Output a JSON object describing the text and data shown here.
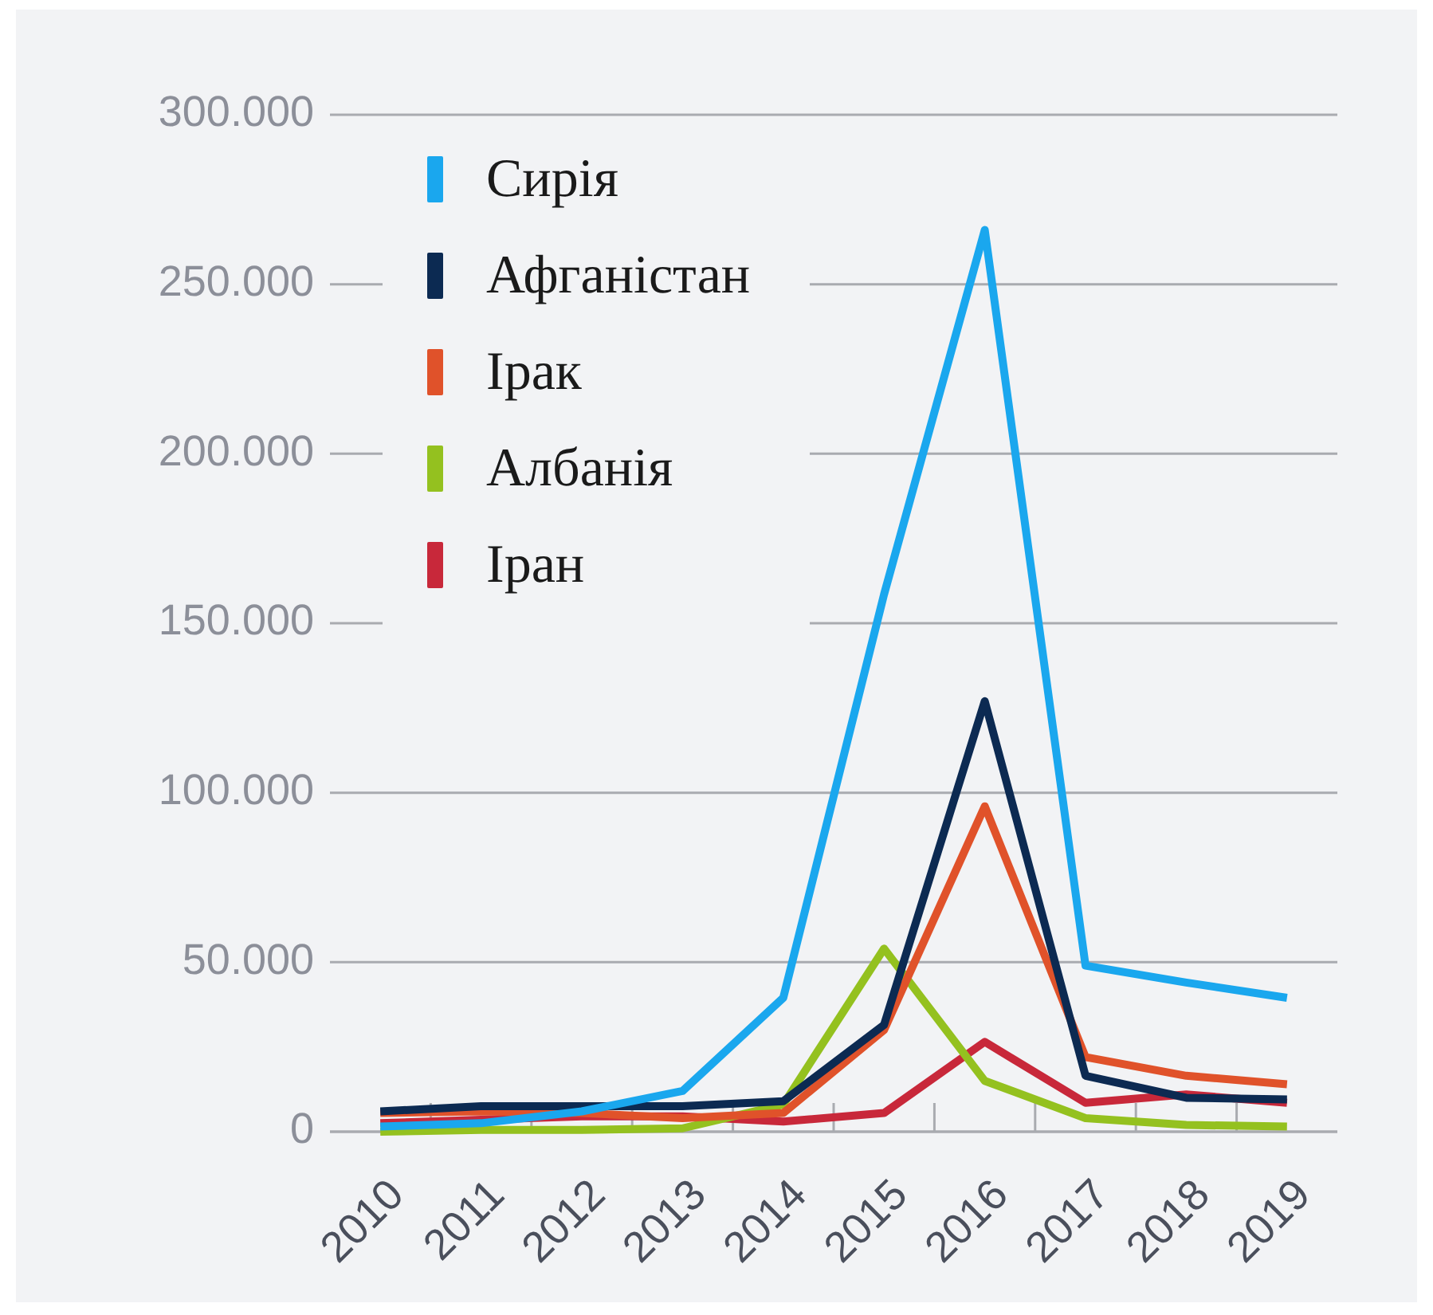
{
  "chart_data": {
    "type": "line",
    "categories": [
      "2010",
      "2011",
      "2012",
      "2013",
      "2014",
      "2015",
      "2016",
      "2017",
      "2018",
      "2019"
    ],
    "series": [
      {
        "name": "Сирія",
        "color": "#1aa7ee",
        "values": [
          1500,
          2500,
          6000,
          12000,
          39500,
          158500,
          266000,
          49000,
          44000,
          39500
        ]
      },
      {
        "name": "Афганістан",
        "color": "#0c2a52",
        "values": [
          6000,
          7500,
          7500,
          7500,
          9000,
          31500,
          127000,
          16500,
          10000,
          9500
        ]
      },
      {
        "name": "Ірак",
        "color": "#e0522a",
        "values": [
          5500,
          6000,
          5500,
          4000,
          5500,
          30000,
          96000,
          22000,
          16500,
          14000
        ]
      },
      {
        "name": "Албанія",
        "color": "#94c11f",
        "values": [
          0,
          500,
          500,
          1000,
          8000,
          54000,
          15000,
          4000,
          2000,
          1500
        ]
      },
      {
        "name": "Іран",
        "color": "#c8283a",
        "values": [
          2500,
          3500,
          4500,
          4500,
          3000,
          5500,
          26500,
          8500,
          11000,
          8500
        ]
      }
    ],
    "ylim": [
      0,
      300000
    ],
    "yticks": [
      0,
      {
        "value": 50000,
        "label": "50.000"
      },
      {
        "value": 100000,
        "label": "100.000"
      },
      {
        "value": 150000,
        "label": "150.000"
      },
      {
        "value": 200000,
        "label": "200.000"
      },
      {
        "value": 250000,
        "label": "250.000"
      },
      {
        "value": 300000,
        "label": "300.000"
      }
    ],
    "grid": "y",
    "legend": "top left"
  }
}
